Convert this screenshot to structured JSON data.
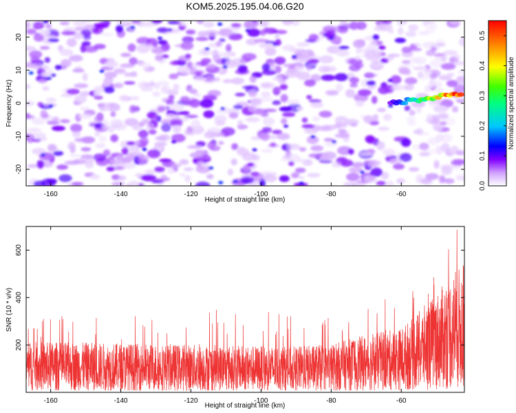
{
  "title": "KOM5.2025.195.04.06.G20",
  "colors": {
    "snr_line": "#ee3333",
    "spectrogram_low": "#cfa8ff",
    "spectrogram_mid": "#6a00ff",
    "spectrogram_high": "#ff0000"
  },
  "chart_data": [
    {
      "type": "heatmap",
      "name": "spectrogram",
      "xlabel": "Height of straight line (km)",
      "ylabel": "Frequency (Hz)",
      "xlim": [
        -167,
        -42
      ],
      "ylim": [
        -25,
        25
      ],
      "xticks": [
        -160,
        -140,
        -120,
        -100,
        -80,
        -60
      ],
      "yticks": [
        -20,
        -10,
        0,
        10,
        20
      ],
      "grid": false,
      "colorbar": {
        "label": "Normalized spectral amplitude",
        "range": [
          0.0,
          0.55
        ],
        "ticks": [
          0.0,
          0.1,
          0.2,
          0.3,
          0.4,
          0.5
        ],
        "colormap": [
          "#ffffff",
          "#cf9fff",
          "#8000ff",
          "#0000ff",
          "#00c8ff",
          "#00ff80",
          "#40ff00",
          "#ffff00",
          "#ff8000",
          "#ff0000"
        ]
      },
      "features": [
        {
          "x_range": [
            -63,
            -43
          ],
          "frequency_start": 0,
          "frequency_end": 3,
          "max_amplitude": 0.5
        },
        {
          "x_range": [
            -167,
            -63
          ],
          "frequency_range": [
            -25,
            25
          ],
          "background_amplitude": [
            0.02,
            0.15
          ]
        }
      ]
    },
    {
      "type": "line",
      "name": "snr",
      "xlabel": "Height of straight line (km)",
      "ylabel": "SNR (10 * v/v)",
      "xlim": [
        -167,
        -42
      ],
      "ylim": [
        0,
        700
      ],
      "xticks": [
        -160,
        -140,
        -120,
        -100,
        -80,
        -60
      ],
      "yticks": [
        200,
        400,
        600
      ],
      "grid": false,
      "series": [
        {
          "envelope_x": [
            -167,
            -150,
            -130,
            -110,
            -90,
            -80,
            -70,
            -60,
            -55,
            -50,
            -45,
            -42
          ],
          "envelope_mean": [
            110,
            108,
            105,
            102,
            100,
            105,
            125,
            140,
            175,
            215,
            260,
            280
          ],
          "envelope_peak": [
            330,
            330,
            320,
            370,
            320,
            330,
            350,
            430,
            470,
            640,
            690,
            700
          ]
        }
      ]
    }
  ]
}
